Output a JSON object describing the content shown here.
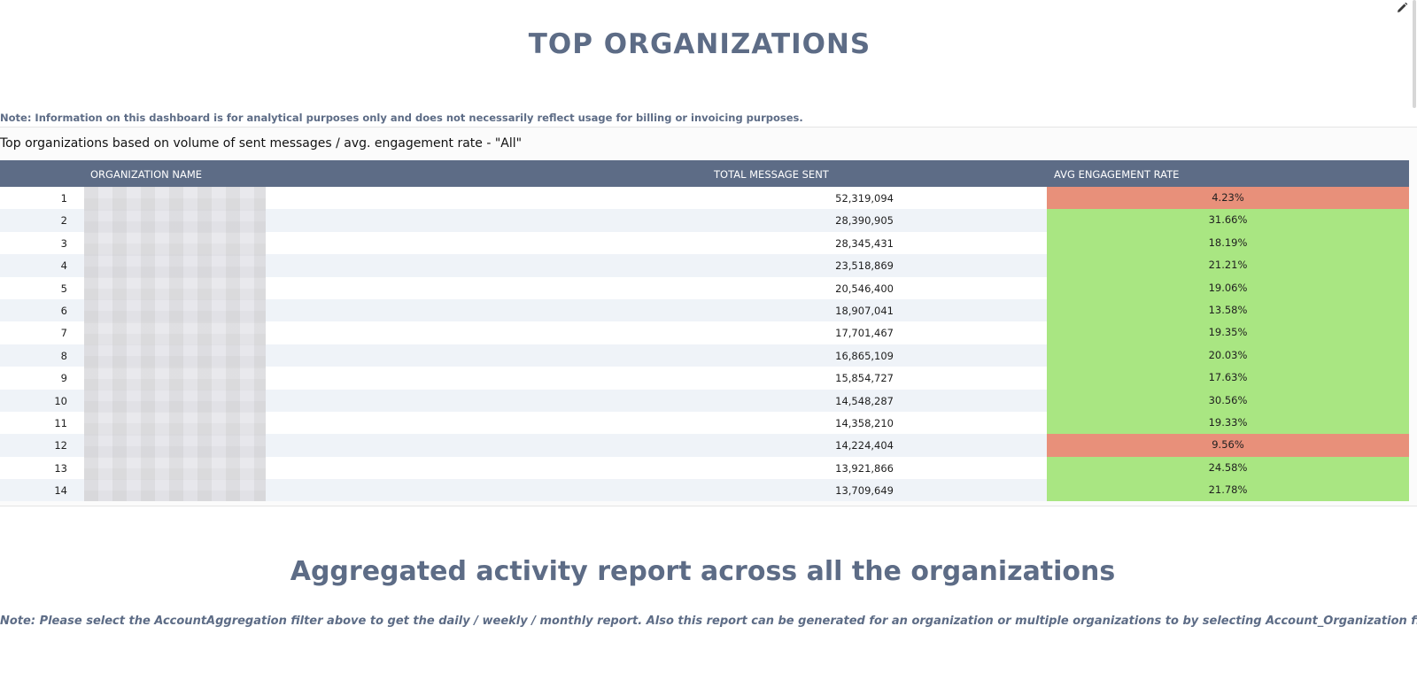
{
  "top_section": {
    "title": "TOP ORGANIZATIONS",
    "note": "Note: Information on this dashboard is for analytical purposes only and does not necessarily reflect usage for billing or invoicing purposes."
  },
  "table_panel": {
    "title": "Top organizations based on volume of sent messages / avg. engagement rate - \"All\"",
    "columns": {
      "name": "ORGANIZATION NAME",
      "total": "TOTAL MESSAGE SENT",
      "rate": "AVG ENGAGEMENT RATE"
    },
    "rows": [
      {
        "index": "1",
        "total": "52,319,094",
        "rate": "4.23%",
        "status": "bad"
      },
      {
        "index": "2",
        "total": "28,390,905",
        "rate": "31.66%",
        "status": "good"
      },
      {
        "index": "3",
        "total": "28,345,431",
        "rate": "18.19%",
        "status": "good"
      },
      {
        "index": "4",
        "total": "23,518,869",
        "rate": "21.21%",
        "status": "good"
      },
      {
        "index": "5",
        "total": "20,546,400",
        "rate": "19.06%",
        "status": "good"
      },
      {
        "index": "6",
        "total": "18,907,041",
        "rate": "13.58%",
        "status": "good"
      },
      {
        "index": "7",
        "total": "17,701,467",
        "rate": "19.35%",
        "status": "good"
      },
      {
        "index": "8",
        "total": "16,865,109",
        "rate": "20.03%",
        "status": "good"
      },
      {
        "index": "9",
        "total": "15,854,727",
        "rate": "17.63%",
        "status": "good"
      },
      {
        "index": "10",
        "total": "14,548,287",
        "rate": "30.56%",
        "status": "good"
      },
      {
        "index": "11",
        "total": "14,358,210",
        "rate": "19.33%",
        "status": "good"
      },
      {
        "index": "12",
        "total": "14,224,404",
        "rate": "9.56%",
        "status": "bad"
      },
      {
        "index": "13",
        "total": "13,921,866",
        "rate": "24.58%",
        "status": "good"
      },
      {
        "index": "14",
        "total": "13,709,649",
        "rate": "21.78%",
        "status": "good"
      }
    ]
  },
  "bottom_section": {
    "title": "Aggregated activity report across all the organizations",
    "note": "Note: Please select the AccountAggregation filter above to get the daily / weekly / monthly report.  Also  this report  can be generated for an organization or multiple organizations to by selecting Account_Organization filter."
  },
  "colors": {
    "header_bg": "#5d6c86",
    "good": "#a9e682",
    "bad": "#e8907a",
    "title_text": "#5d6c86"
  },
  "icons": {
    "edit": "pencil-icon"
  }
}
